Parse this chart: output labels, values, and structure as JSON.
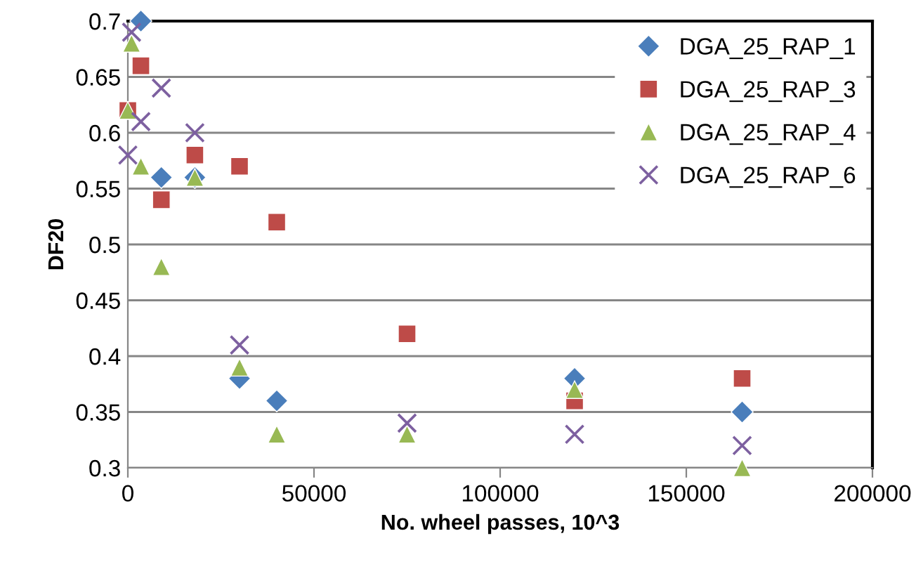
{
  "chart_data": {
    "type": "scatter",
    "xlabel": "No. wheel passes, 10^3",
    "ylabel": "DF20",
    "xlim": [
      0,
      200000
    ],
    "xticks": [
      0,
      50000,
      100000,
      150000,
      200000
    ],
    "ylim": [
      0.3,
      0.7
    ],
    "yticks": [
      0.3,
      0.35,
      0.4,
      0.45,
      0.5,
      0.55,
      0.6,
      0.65,
      0.7
    ],
    "grid": "y",
    "legend": "top right",
    "series": [
      {
        "name": "DGA_25_RAP_1",
        "color": "#4a7ebb",
        "marker": "diamond",
        "x": [
          3500,
          9000,
          18000,
          30000,
          40000,
          120000,
          165000
        ],
        "values": [
          0.7,
          0.56,
          0.56,
          0.38,
          0.36,
          0.38,
          0.35
        ]
      },
      {
        "name": "DGA_25_RAP_3",
        "color": "#be4b48",
        "marker": "square",
        "x": [
          0,
          3500,
          9000,
          18000,
          30000,
          40000,
          75000,
          120000,
          165000
        ],
        "values": [
          0.62,
          0.66,
          0.54,
          0.58,
          0.57,
          0.52,
          0.42,
          0.36,
          0.38
        ]
      },
      {
        "name": "DGA_25_RAP_4",
        "color": "#98b954",
        "marker": "triangle",
        "x": [
          0,
          1000,
          3500,
          9000,
          18000,
          30000,
          40000,
          75000,
          120000,
          165000
        ],
        "values": [
          0.62,
          0.68,
          0.57,
          0.48,
          0.56,
          0.39,
          0.33,
          0.33,
          0.37,
          0.3
        ]
      },
      {
        "name": "DGA_25_RAP_6",
        "color": "#7d60a0",
        "marker": "cross",
        "x": [
          0,
          1000,
          3500,
          9000,
          18000,
          30000,
          75000,
          120000,
          165000
        ],
        "values": [
          0.58,
          0.69,
          0.61,
          0.64,
          0.6,
          0.41,
          0.34,
          0.33,
          0.32
        ]
      }
    ]
  }
}
